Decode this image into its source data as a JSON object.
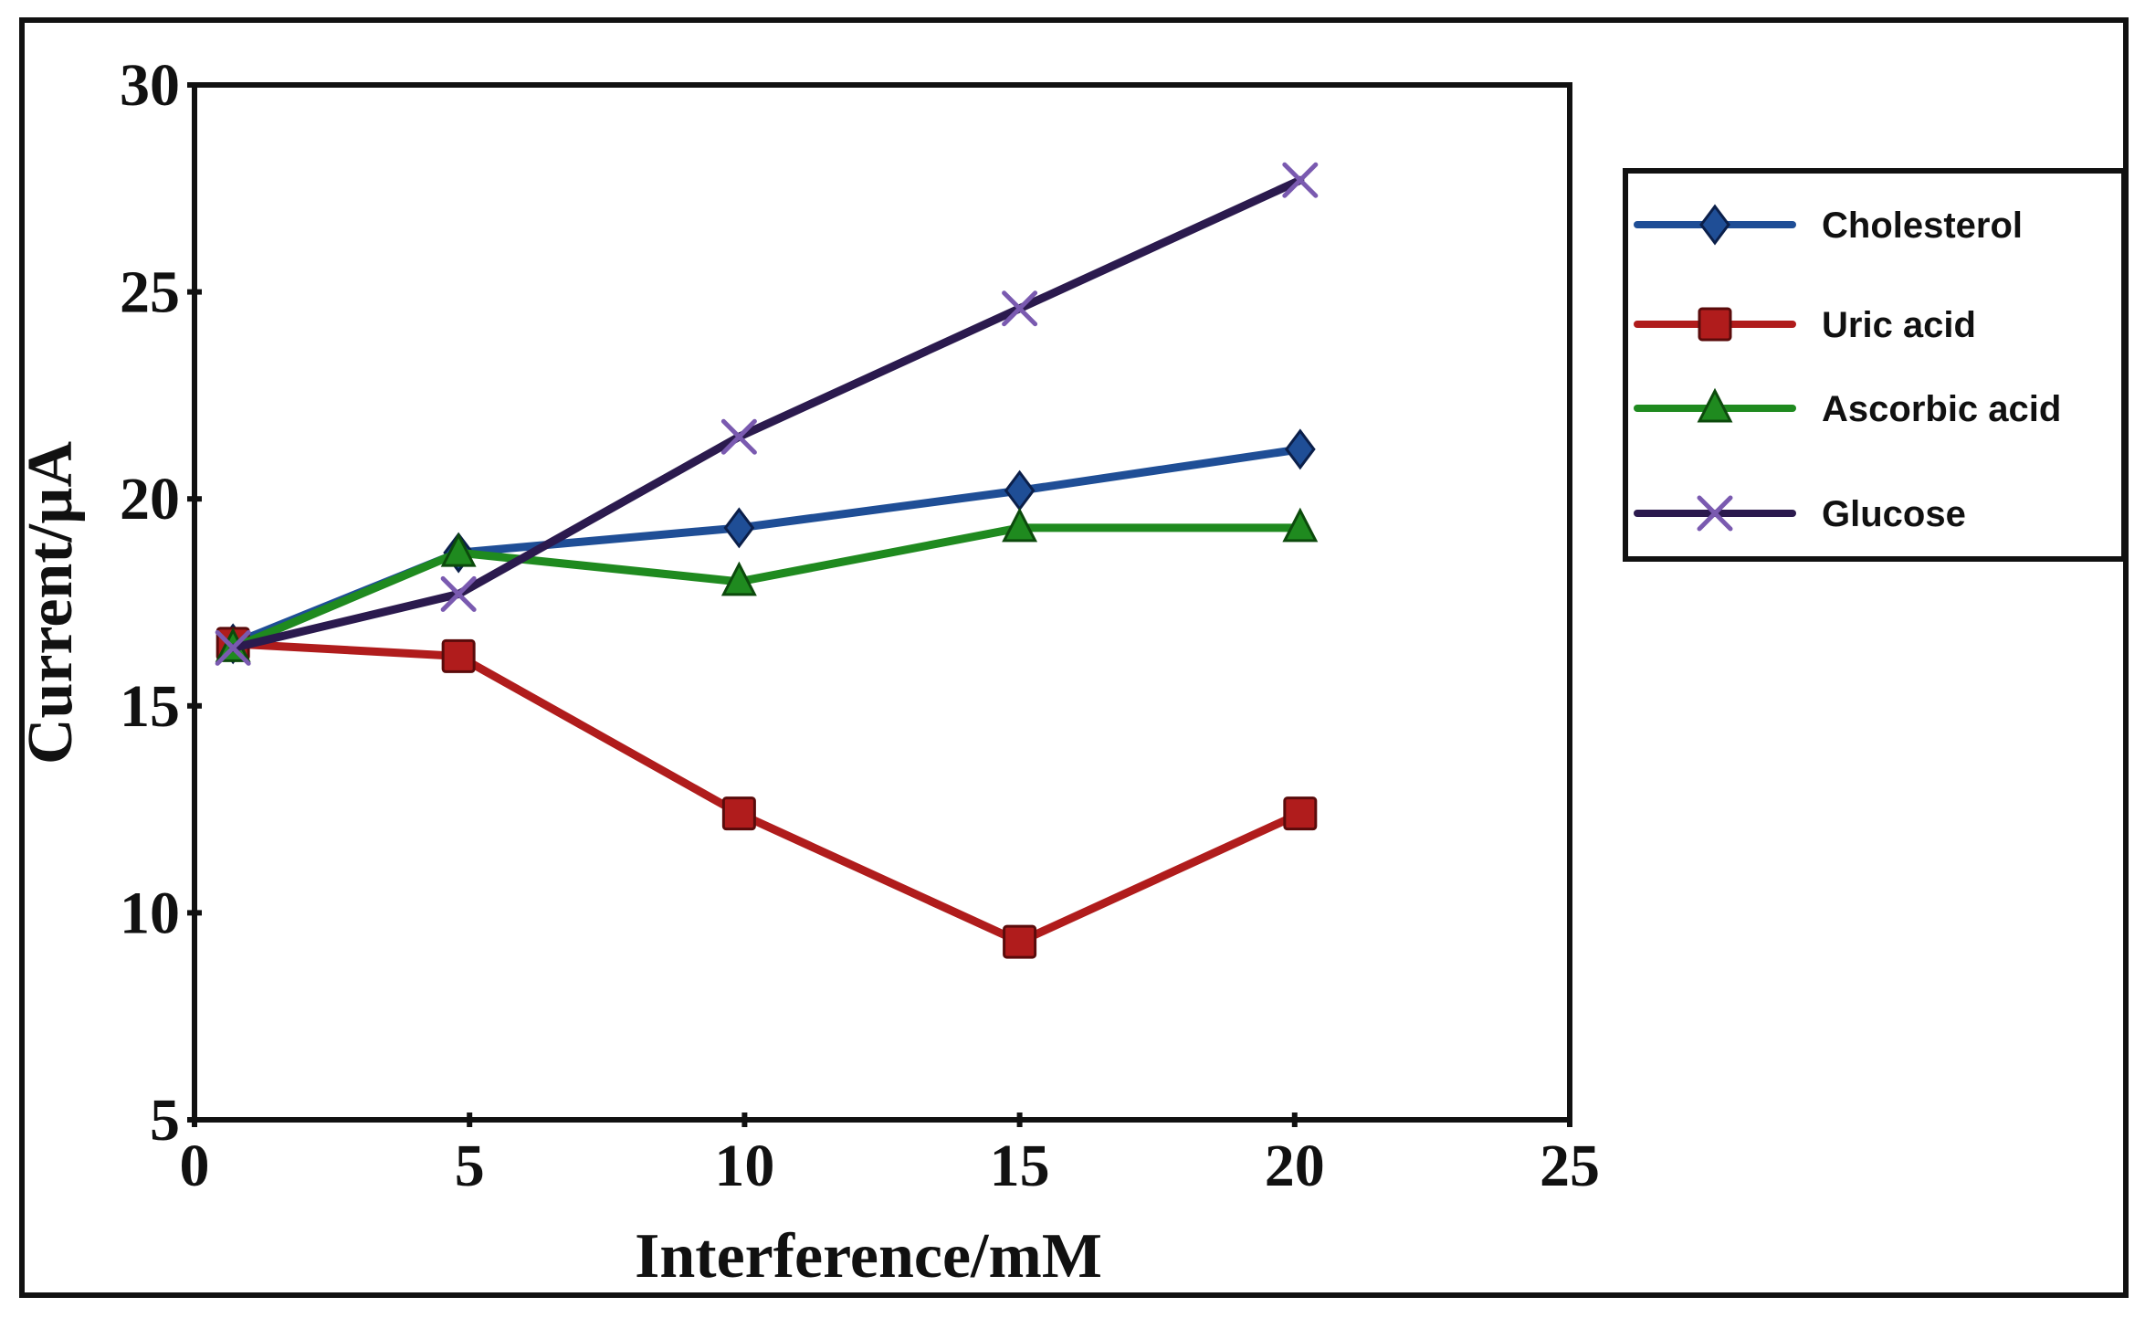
{
  "chart_data": {
    "type": "line",
    "title": "",
    "xlabel": "Interference/mM",
    "ylabel": "Current/µA",
    "xlim": [
      0,
      25
    ],
    "ylim": [
      5,
      30
    ],
    "xticks": [
      0,
      5,
      10,
      15,
      20,
      25
    ],
    "yticks": [
      5,
      10,
      15,
      20,
      25,
      30
    ],
    "grid": false,
    "legend_position": "right",
    "x": [
      0.7,
      4.8,
      9.9,
      15.0,
      20.1
    ],
    "series": [
      {
        "name": "Cholesterol",
        "color": "#1f4e96",
        "marker": "diamond",
        "values": [
          16.5,
          18.7,
          19.3,
          20.2,
          21.2
        ]
      },
      {
        "name": "Uric acid",
        "color": "#b01c1c",
        "marker": "square",
        "values": [
          16.5,
          16.2,
          12.4,
          9.3,
          12.4
        ]
      },
      {
        "name": "Ascorbic acid",
        "color": "#1f8a1f",
        "marker": "triangle",
        "values": [
          16.4,
          18.7,
          18.0,
          19.3,
          19.3
        ]
      },
      {
        "name": "Glucose",
        "color": "#2b1a4e",
        "marker": "cross",
        "values": [
          16.4,
          17.7,
          21.5,
          24.6,
          27.7
        ]
      }
    ]
  }
}
